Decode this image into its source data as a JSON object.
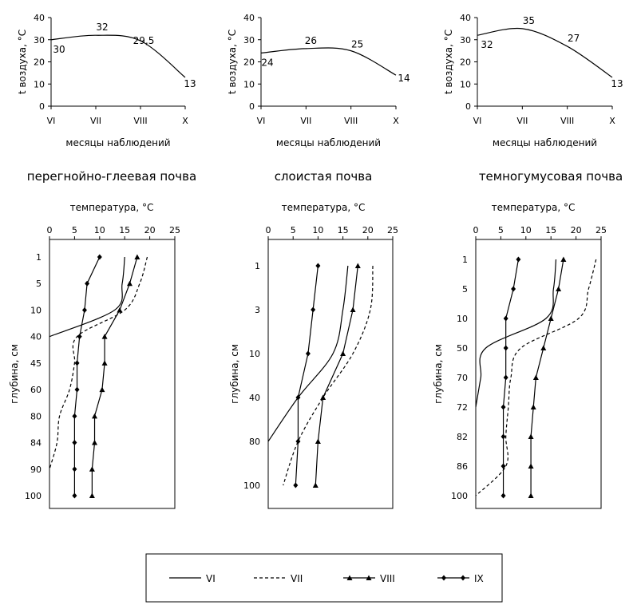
{
  "chart_data": [
    {
      "id": "air1",
      "type": "line",
      "ylabel": "t воздуха, °C",
      "xlabel": "месяцы наблюдений",
      "ylim": [
        0,
        40
      ],
      "yticks": [
        0,
        10,
        20,
        30,
        40
      ],
      "categories": [
        "VI",
        "VII",
        "VIII",
        "X"
      ],
      "x": [
        0,
        1,
        2,
        3
      ],
      "values": [
        30,
        32,
        29.5,
        13
      ],
      "data_labels": [
        "30",
        "32",
        "29,5",
        "13"
      ]
    },
    {
      "id": "air2",
      "type": "line",
      "ylabel": "t воздуха, °C",
      "xlabel": "месяцы наблюдений",
      "ylim": [
        0,
        40
      ],
      "yticks": [
        0,
        10,
        20,
        30,
        40
      ],
      "categories": [
        "VI",
        "VII",
        "VIII",
        "X"
      ],
      "x": [
        0,
        1,
        2,
        3
      ],
      "values": [
        24,
        26,
        25,
        14
      ],
      "data_labels": [
        "24",
        "26",
        "25",
        "14"
      ]
    },
    {
      "id": "air3",
      "type": "line",
      "ylabel": "t воздуха, °C",
      "xlabel": "месяцы наблюдений",
      "ylim": [
        0,
        40
      ],
      "yticks": [
        0,
        10,
        20,
        30,
        40
      ],
      "categories": [
        "VI",
        "VII",
        "VIII",
        "X"
      ],
      "x": [
        0,
        1,
        2,
        3
      ],
      "values": [
        32,
        35,
        27,
        13
      ],
      "data_labels": [
        "32",
        "35",
        "27",
        "13"
      ]
    },
    {
      "id": "soil1",
      "type": "line",
      "title": "перегнойно-глеевая почва",
      "xlabel": "температура, °C",
      "ylabel": "глубина, см",
      "xlim": [
        0,
        25
      ],
      "xticks": [
        0,
        5,
        10,
        15,
        20,
        25
      ],
      "depths": [
        "1",
        "5",
        "10",
        "40",
        "45",
        "60",
        "80",
        "84",
        "90",
        "100"
      ],
      "series": [
        {
          "name": "VI",
          "values": [
            15,
            14.5,
            13,
            0,
            null,
            null,
            null,
            null,
            null,
            null
          ]
        },
        {
          "name": "VII",
          "values": [
            19.5,
            18,
            15,
            5.5,
            5,
            4,
            2,
            1.5,
            0,
            null
          ]
        },
        {
          "name": "VIII",
          "values": [
            17.5,
            16,
            14,
            11,
            11,
            10.5,
            9,
            9,
            8.5,
            8.5
          ]
        },
        {
          "name": "IX",
          "values": [
            10,
            7.5,
            7,
            6,
            5.5,
            5.5,
            5,
            5,
            5,
            5
          ]
        }
      ]
    },
    {
      "id": "soil2",
      "type": "line",
      "title": "слоистая почва",
      "xlabel": "температура, °C",
      "ylabel": "глубина, см",
      "xlim": [
        0,
        25
      ],
      "xticks": [
        0,
        5,
        10,
        15,
        20,
        25
      ],
      "depths": [
        "1",
        "3",
        "10",
        "40",
        "80",
        "100"
      ],
      "series": [
        {
          "name": "VI",
          "values": [
            16,
            15,
            13,
            6,
            0,
            null
          ]
        },
        {
          "name": "VII",
          "values": [
            21,
            20.5,
            17,
            11,
            6,
            3
          ]
        },
        {
          "name": "VIII",
          "values": [
            18,
            17,
            15,
            11,
            10,
            9.5
          ]
        },
        {
          "name": "IX",
          "values": [
            10,
            9,
            8,
            6,
            6,
            5.5
          ]
        }
      ]
    },
    {
      "id": "soil3",
      "type": "line",
      "title": "темногумусовая почва",
      "xlabel": "температура, °C",
      "ylabel": "глубина, см",
      "xlim": [
        0,
        25
      ],
      "xticks": [
        0,
        5,
        10,
        15,
        20,
        25
      ],
      "depths": [
        "1",
        "5",
        "10",
        "50",
        "70",
        "72",
        "82",
        "86",
        "100"
      ],
      "series": [
        {
          "name": "VI",
          "values": [
            16,
            15.5,
            14,
            2,
            1,
            0,
            null,
            null,
            null
          ]
        },
        {
          "name": "VII",
          "values": [
            24,
            22.5,
            20.5,
            9,
            7,
            6.5,
            6,
            6,
            0
          ]
        },
        {
          "name": "VIII",
          "values": [
            17.5,
            16.5,
            15,
            13.5,
            12,
            11.5,
            11,
            11,
            11
          ]
        },
        {
          "name": "IX",
          "values": [
            8.5,
            7.5,
            6,
            6,
            6,
            5.5,
            5.5,
            5.5,
            5.5
          ]
        }
      ]
    }
  ],
  "legend": {
    "items": [
      {
        "name": "VI",
        "style": "solid"
      },
      {
        "name": "VII",
        "style": "dashed"
      },
      {
        "name": "VIII",
        "style": "triangle"
      },
      {
        "name": "IX",
        "style": "diamond"
      }
    ]
  }
}
